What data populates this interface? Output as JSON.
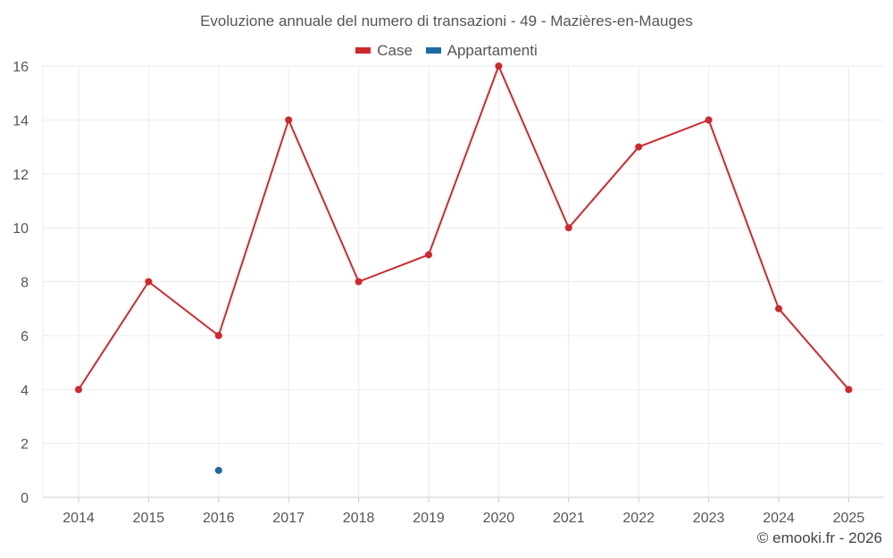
{
  "chart_data": {
    "type": "line",
    "title": "Evoluzione annuale del numero di transazioni - 49 - Mazières-en-Mauges",
    "categories": [
      "2014",
      "2015",
      "2016",
      "2017",
      "2018",
      "2019",
      "2020",
      "2021",
      "2022",
      "2023",
      "2024",
      "2025"
    ],
    "series": [
      {
        "name": "Case",
        "color": "#d0282c",
        "values": [
          4,
          8,
          6,
          14,
          8,
          9,
          16,
          10,
          13,
          14,
          7,
          4
        ]
      },
      {
        "name": "Appartamenti",
        "color": "#1b6aa5",
        "values": [
          null,
          null,
          1,
          null,
          null,
          null,
          null,
          null,
          null,
          null,
          null,
          null
        ]
      }
    ],
    "ylim": [
      0,
      16
    ],
    "yticks": [
      0,
      2,
      4,
      6,
      8,
      10,
      12,
      14,
      16
    ],
    "xlabel": "",
    "ylabel": "",
    "grid": true,
    "legend_position": "top-center"
  },
  "footer": "© emooki.fr - 2026"
}
